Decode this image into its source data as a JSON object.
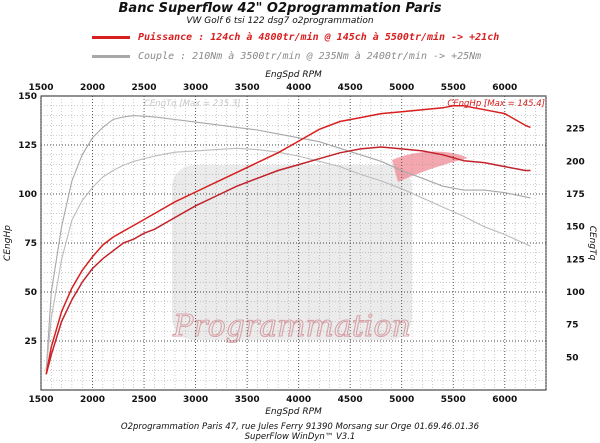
{
  "header": {
    "title": "Banc Superflow 42\" O2programmation Paris",
    "subtitle": "VW Golf 6 tsi 122 dsg7 o2programmation"
  },
  "legend": [
    {
      "text": "Puissance : 124ch à 4800tr/min @ 145ch à 5500tr/min  -> +21ch",
      "color": "#d81e1e"
    },
    {
      "text": "Couple :  210Nm à 3500tr/min @ 235Nm à 2400tr/min -> +25Nm",
      "color": "#a8a8a8"
    }
  ],
  "watermark": {
    "text": "Programmation"
  },
  "annotations": {
    "hp_max": "CEngHp [Max = 145.4]",
    "tq_max": "CEngTq [Max = 235.3]"
  },
  "footer": {
    "line1": "O2programmation Paris 47, rue Jules Ferry 91390 Morsang sur Orge 01.69.46.01.36",
    "line2": "SuperFlow WinDyn™ V3.1"
  },
  "chart_data": {
    "type": "line",
    "title": "Banc Superflow 42\" O2programmation Paris",
    "xlabel": "EngSpd RPM",
    "ylabel_left": "CEngHp",
    "ylabel_right": "CEngTq",
    "xlim": [
      1500,
      6400
    ],
    "ylim_left": [
      0,
      150
    ],
    "ylim_right": [
      25,
      250
    ],
    "x_ticks": [
      1500,
      2000,
      2500,
      3000,
      3500,
      4000,
      4500,
      5000,
      5500,
      6000
    ],
    "y_left_ticks": [
      25,
      50,
      75,
      100,
      125,
      150
    ],
    "y_right_ticks": [
      50,
      75,
      100,
      125,
      150,
      175,
      200,
      225
    ],
    "grid": true,
    "series": [
      {
        "name": "Puissance",
        "axis": "left",
        "color": "#d81e1e",
        "x": [
          1550,
          1600,
          1700,
          1800,
          1900,
          2000,
          2100,
          2200,
          2300,
          2400,
          2500,
          2600,
          2800,
          3000,
          3200,
          3400,
          3600,
          3800,
          4000,
          4200,
          4400,
          4600,
          4800,
          5000,
          5200,
          5400,
          5500,
          5600,
          5800,
          6000,
          6200,
          6250
        ],
        "y": [
          8,
          22,
          40,
          52,
          61,
          68,
          74,
          78,
          81,
          84,
          87,
          90,
          96,
          101,
          106,
          111,
          116,
          121,
          127,
          133,
          137,
          139,
          141,
          142,
          143,
          144,
          145,
          145,
          143,
          141,
          135,
          134
        ]
      },
      {
        "name": "Couple",
        "axis": "right",
        "color": "#a8a8a8",
        "x": [
          1550,
          1600,
          1700,
          1800,
          1900,
          2000,
          2100,
          2200,
          2300,
          2400,
          2600,
          2800,
          3000,
          3200,
          3400,
          3600,
          3800,
          4000,
          4200,
          4400,
          4600,
          4800,
          5000,
          5200,
          5400,
          5600,
          5800,
          6000,
          6250
        ],
        "y": [
          40,
          100,
          150,
          185,
          205,
          218,
          226,
          232,
          234,
          235,
          234,
          232,
          230,
          228,
          226,
          224,
          221,
          218,
          215,
          210,
          205,
          200,
          193,
          187,
          181,
          178,
          178,
          176,
          172
        ]
      },
      {
        "name": "",
        "axis": "left",
        "color": "#c2222a",
        "x": [
          1550,
          1600,
          1700,
          1800,
          1900,
          2000,
          2100,
          2200,
          2300,
          2400,
          2500,
          2600,
          2800,
          3000,
          3200,
          3400,
          3600,
          3800,
          4000,
          4200,
          4400,
          4600,
          4800,
          5000,
          5200,
          5400,
          5600,
          5800,
          6000,
          6200,
          6250
        ],
        "y": [
          8,
          18,
          35,
          46,
          55,
          62,
          67,
          71,
          75,
          77,
          80,
          82,
          88,
          94,
          99,
          104,
          108,
          112,
          115,
          118,
          121,
          123,
          124,
          123,
          122,
          120,
          117,
          116,
          114,
          112,
          112
        ]
      },
      {
        "name": "",
        "axis": "right",
        "color": "#bcbcbc",
        "x": [
          1550,
          1600,
          1700,
          1800,
          1900,
          2000,
          2100,
          2200,
          2300,
          2400,
          2600,
          2800,
          3000,
          3200,
          3400,
          3600,
          3800,
          4000,
          4200,
          4400,
          4600,
          4800,
          5000,
          5200,
          5400,
          5600,
          5800,
          6000,
          6250
        ],
        "y": [
          40,
          80,
          125,
          155,
          170,
          180,
          188,
          193,
          197,
          200,
          204,
          207,
          208,
          209,
          210,
          209,
          207,
          204,
          200,
          196,
          190,
          185,
          179,
          172,
          165,
          158,
          150,
          144,
          135
        ]
      }
    ]
  }
}
